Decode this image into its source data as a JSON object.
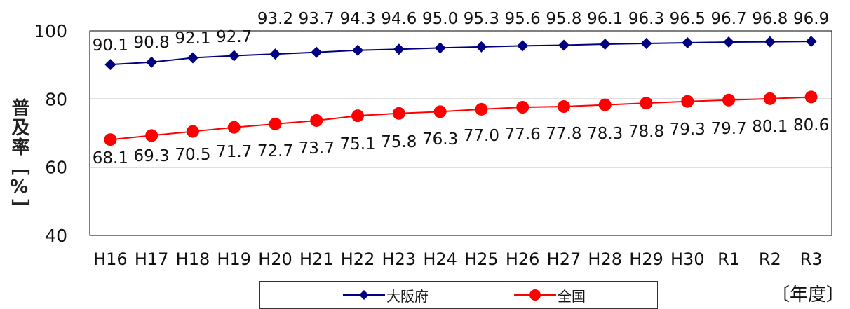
{
  "chart_data": {
    "type": "line",
    "ylabel": "普及率［%］",
    "xunit": "〔年度〕",
    "ylim": [
      40,
      100
    ],
    "yticks": [
      40,
      60,
      80,
      100
    ],
    "categories": [
      "H16",
      "H17",
      "H18",
      "H19",
      "H20",
      "H21",
      "H22",
      "H23",
      "H24",
      "H25",
      "H26",
      "H27",
      "H28",
      "H29",
      "H30",
      "R1",
      "R2",
      "R3"
    ],
    "series": [
      {
        "name": "大阪府",
        "color": "#000080",
        "marker": "diamond",
        "values": [
          90.1,
          90.8,
          92.1,
          92.7,
          93.2,
          93.7,
          94.3,
          94.6,
          95.0,
          95.3,
          95.6,
          95.8,
          96.1,
          96.3,
          96.5,
          96.7,
          96.8,
          96.9
        ]
      },
      {
        "name": "全国",
        "color": "#ff0000",
        "marker": "circle",
        "values": [
          68.1,
          69.3,
          70.5,
          71.7,
          72.7,
          73.7,
          75.1,
          75.8,
          76.3,
          77.0,
          77.6,
          77.8,
          78.3,
          78.8,
          79.3,
          79.7,
          80.1,
          80.6
        ]
      }
    ],
    "legend_position": "bottom",
    "grid": true
  }
}
